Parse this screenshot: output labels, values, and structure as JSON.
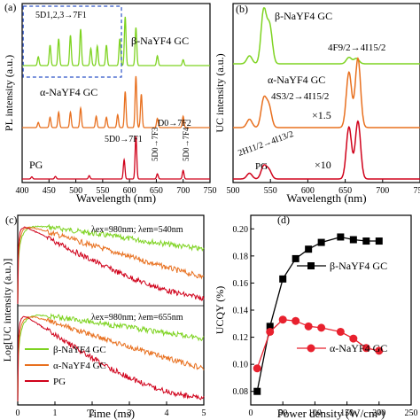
{
  "chart_data": [
    {
      "panel": "(a)",
      "type": "line",
      "xlabel": "Wavelength (nm)",
      "ylabel": "PL intensity (a.u.)",
      "xlim": [
        400,
        750
      ],
      "xticks": [
        400,
        450,
        500,
        550,
        600,
        650,
        700,
        750
      ],
      "series": [
        {
          "name": "β-NaYF4 GC",
          "color": "#7ed321",
          "peaks": [
            [
              430,
              0.18
            ],
            [
              452,
              0.42
            ],
            [
              468,
              0.55
            ],
            [
              490,
              0.62
            ],
            [
              509,
              0.75
            ],
            [
              528,
              0.35
            ],
            [
              540,
              0.4
            ],
            [
              557,
              0.42
            ],
            [
              582,
              0.55
            ],
            [
              592,
              1.0
            ],
            [
              612,
              0.78
            ],
            [
              652,
              0.2
            ],
            [
              700,
              0.12
            ]
          ]
        },
        {
          "name": "α-NaYF4 GC",
          "color": "#e8701f",
          "peaks": [
            [
              430,
              0.1
            ],
            [
              452,
              0.2
            ],
            [
              468,
              0.3
            ],
            [
              490,
              0.3
            ],
            [
              509,
              0.38
            ],
            [
              538,
              0.22
            ],
            [
              557,
              0.2
            ],
            [
              578,
              0.25
            ],
            [
              592,
              0.7
            ],
            [
              612,
              1.0
            ],
            [
              622,
              0.65
            ],
            [
              652,
              0.18
            ],
            [
              700,
              0.22
            ]
          ]
        },
        {
          "name": "PG",
          "color": "#d0021b",
          "peaks": [
            [
              418,
              0.05
            ],
            [
              462,
              0.06
            ],
            [
              525,
              0.08
            ],
            [
              590,
              0.45
            ],
            [
              612,
              1.0
            ],
            [
              652,
              0.12
            ],
            [
              700,
              0.2
            ]
          ]
        }
      ],
      "annotations": [
        "5D1,2,3→7F1",
        "D0→7F2",
        "5D0→7F1",
        "5D0→7F3",
        "5D0→7F4"
      ]
    },
    {
      "panel": "(b)",
      "type": "line",
      "xlabel": "Wavelength (nm)",
      "ylabel": "UC intensity (a.u.)",
      "xlim": [
        500,
        750
      ],
      "xticks": [
        500,
        550,
        600,
        650,
        700,
        750
      ],
      "series": [
        {
          "name": "β-NaYF4 GC",
          "color": "#7ed321",
          "peaks": [
            [
              522,
              0.15
            ],
            [
              541,
              1.0
            ],
            [
              549,
              0.7
            ],
            [
              655,
              0.12
            ],
            [
              665,
              0.1
            ]
          ]
        },
        {
          "name": "α-NaYF4 GC",
          "color": "#e8701f",
          "scale": "×1.5",
          "peaks": [
            [
              522,
              0.12
            ],
            [
              541,
              0.4
            ],
            [
              548,
              0.3
            ],
            [
              655,
              0.8
            ],
            [
              667,
              1.0
            ]
          ]
        },
        {
          "name": "PG",
          "color": "#d0021b",
          "scale": "×10",
          "peaks": [
            [
              522,
              0.1
            ],
            [
              541,
              0.22
            ],
            [
              548,
              0.15
            ],
            [
              655,
              0.9
            ],
            [
              667,
              1.0
            ]
          ]
        }
      ],
      "annotations": [
        "β-NaYF4 GC",
        "4F9/2→4I15/2",
        "α-NaYF4 GC",
        "4S3/2→4I15/2",
        "×1.5",
        "2H11/2→4I13/2",
        "PG",
        "×10"
      ]
    },
    {
      "panel": "(c)",
      "type": "line",
      "xlabel": "Time (ms)",
      "ylabel": "Log[UC intensity (a.u.)]",
      "xlim": [
        0,
        5
      ],
      "xticks": [
        0,
        1,
        2,
        3,
        4,
        5
      ],
      "subplots": [
        {
          "label": "λex=980nm; λem=540nm",
          "series": [
            {
              "name": "β-NaYF4 GC",
              "color": "#7ed321",
              "rise_ms": 0.55,
              "decay_ms": 3.2
            },
            {
              "name": "α-NaYF4 GC",
              "color": "#e8701f",
              "rise_ms": 0.35,
              "decay_ms": 1.5
            },
            {
              "name": "PG",
              "color": "#d0021b",
              "rise_ms": 0.2,
              "decay_ms": 0.9
            }
          ]
        },
        {
          "label": "λex=980nm; λem=655nm",
          "series": [
            {
              "name": "β-NaYF4 GC",
              "color": "#7ed321",
              "rise_ms": 0.6,
              "decay_ms": 3.5
            },
            {
              "name": "α-NaYF4 GC",
              "color": "#e8701f",
              "rise_ms": 0.4,
              "decay_ms": 1.6
            },
            {
              "name": "PG",
              "color": "#d0021b",
              "rise_ms": 0.2,
              "decay_ms": 0.8
            }
          ]
        }
      ],
      "legend": [
        "β-NaYF4 GC",
        "α-NaYF4 GC",
        "PG"
      ]
    },
    {
      "panel": "(d)",
      "type": "scatter",
      "xlabel": "Power density (W/cm²)",
      "ylabel": "UCQY (%)",
      "xlim": [
        0,
        250
      ],
      "ylim": [
        0.07,
        0.21
      ],
      "xticks": [
        0,
        50,
        100,
        150,
        200,
        250
      ],
      "yticks": [
        0.08,
        0.1,
        0.12,
        0.14,
        0.16,
        0.18,
        0.2
      ],
      "series": [
        {
          "name": "β-NaYF4 GC",
          "color": "#000000",
          "marker": "square",
          "x": [
            10,
            30,
            50,
            70,
            90,
            110,
            140,
            160,
            180,
            200
          ],
          "y": [
            0.08,
            0.128,
            0.163,
            0.178,
            0.185,
            0.19,
            0.194,
            0.192,
            0.191,
            0.191
          ]
        },
        {
          "name": "α-NaYF4 GC",
          "color": "#e8212e",
          "marker": "circle",
          "x": [
            10,
            30,
            50,
            70,
            90,
            110,
            140,
            160,
            180,
            200
          ],
          "y": [
            0.097,
            0.124,
            0.133,
            0.132,
            0.128,
            0.127,
            0.124,
            0.119,
            0.112,
            0.11
          ]
        }
      ],
      "legend": [
        "β-NaYF4 GC",
        "α-NaYF4 GC"
      ]
    }
  ]
}
